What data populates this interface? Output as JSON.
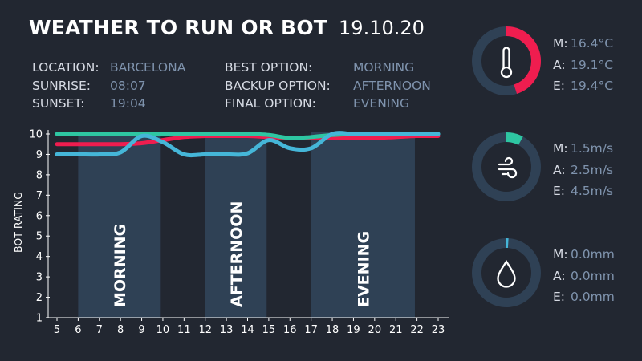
{
  "header": {
    "title": "WEATHER TO RUN OR BOT",
    "date": "19.10.20"
  },
  "info": {
    "location_label": "LOCATION:",
    "location": "BARCELONA",
    "sunrise_label": "SUNRISE:",
    "sunrise": "08:07",
    "sunset_label": "SUNSET:",
    "sunset": "19:04",
    "best_label": "BEST OPTION:",
    "best": "MORNING",
    "backup_label": "BACKUP OPTION:",
    "backup": "AFTERNOON",
    "final_label": "FINAL OPTION:",
    "final": "EVENING"
  },
  "chart_data": {
    "type": "line",
    "ylabel": "BOT RATING",
    "xlabel": "",
    "ylim": [
      1,
      10
    ],
    "xlim": [
      5,
      23
    ],
    "x_ticks": [
      "5",
      "6",
      "7",
      "8",
      "9",
      "10",
      "11",
      "12",
      "13",
      "14",
      "15",
      "16",
      "17",
      "18",
      "19",
      "20",
      "21",
      "22",
      "23"
    ],
    "y_ticks": [
      "1",
      "2",
      "3",
      "4",
      "5",
      "6",
      "7",
      "8",
      "9",
      "10"
    ],
    "bands": [
      {
        "label": "MORNING",
        "x0": 6,
        "x1": 9.9
      },
      {
        "label": "AFTERNOON",
        "x0": 12,
        "x1": 14.9
      },
      {
        "label": "EVENING",
        "x0": 17,
        "x1": 21.9
      }
    ],
    "series": [
      {
        "color": "#ef1d4f",
        "x": [
          5,
          6,
          7,
          8,
          9,
          10,
          11,
          12,
          13,
          14,
          15,
          16,
          17,
          18,
          19,
          20,
          21,
          22,
          23
        ],
        "values": [
          9.5,
          9.5,
          9.5,
          9.5,
          9.55,
          9.7,
          9.85,
          9.9,
          9.9,
          9.9,
          9.85,
          9.8,
          9.8,
          9.8,
          9.8,
          9.8,
          9.85,
          9.9,
          9.9
        ]
      },
      {
        "color": "#2ec6a2",
        "x": [
          5,
          6,
          7,
          8,
          9,
          10,
          11,
          12,
          13,
          14,
          15,
          16,
          17,
          18,
          19,
          20,
          21,
          22,
          23
        ],
        "values": [
          10,
          10,
          10,
          10,
          10,
          10,
          10,
          10,
          10,
          10,
          9.95,
          9.8,
          9.85,
          9.95,
          10,
          10,
          10,
          10,
          10
        ]
      },
      {
        "color": "#45b6d8",
        "x": [
          5,
          6,
          7,
          8,
          9,
          10,
          11,
          12,
          13,
          14,
          15,
          16,
          17,
          18,
          19,
          20,
          21,
          22,
          23
        ],
        "values": [
          9,
          9,
          9,
          9.1,
          9.9,
          9.6,
          9,
          9,
          9,
          9.05,
          9.7,
          9.3,
          9.3,
          10,
          10,
          10,
          10,
          10,
          10
        ]
      }
    ]
  },
  "gauges": [
    {
      "name": "temperature",
      "icon": "thermometer-icon",
      "level": 0.45,
      "color": "#ef1d4f",
      "readings": [
        {
          "k": "M:",
          "v": "16.4°C"
        },
        {
          "k": "A:",
          "v": "19.1°C"
        },
        {
          "k": "E:",
          "v": "19.4°C"
        }
      ]
    },
    {
      "name": "wind",
      "icon": "wind-icon",
      "level": 0.08,
      "color": "#2ec6a2",
      "readings": [
        {
          "k": "M:",
          "v": "1.5m/s"
        },
        {
          "k": "A:",
          "v": "2.5m/s"
        },
        {
          "k": "E:",
          "v": "4.5m/s"
        }
      ]
    },
    {
      "name": "rain",
      "icon": "drop-icon",
      "level": 0.01,
      "color": "#45b6d8",
      "readings": [
        {
          "k": "M:",
          "v": "0.0mm"
        },
        {
          "k": "A:",
          "v": "0.0mm"
        },
        {
          "k": "E:",
          "v": "0.0mm"
        }
      ]
    }
  ],
  "colors": {
    "background": "#222731",
    "ring": "#2f4155",
    "band": "#2f4155",
    "muted": "#7f93ad"
  }
}
